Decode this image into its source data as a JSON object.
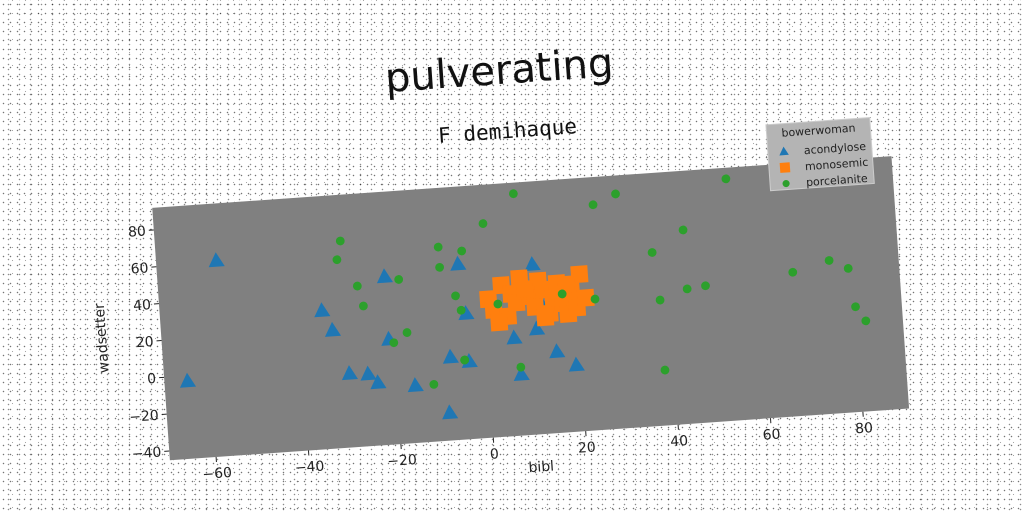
{
  "chart_data": {
    "type": "scatter",
    "title": "pulverating",
    "subtitle": "F demihaque",
    "xlabel": "bibl",
    "ylabel": "wadsetter",
    "xlim": [
      -70,
      90
    ],
    "ylim": [
      -45,
      92
    ],
    "xticks": [
      -60,
      -40,
      -20,
      0,
      20,
      40,
      60,
      80
    ],
    "yticks": [
      -40,
      -20,
      0,
      20,
      40,
      60,
      80
    ],
    "grid": false,
    "plot_background": "#808080",
    "legend": {
      "title": "bowerwoman",
      "position": "top-right"
    },
    "series": [
      {
        "name": "acondylose",
        "marker": "triangle",
        "color": "#1f77b4",
        "x": [
          -57,
          -65,
          -35,
          -33,
          -30,
          -26,
          -24,
          -21,
          -21,
          -16,
          -9,
          -8,
          -5,
          -4,
          -4,
          6,
          7,
          11,
          11,
          12,
          15,
          19
        ],
        "y": [
          61,
          -3,
          30,
          19,
          -5,
          -6,
          -11,
          46,
          12,
          -14,
          -30,
          0,
          50,
          23,
          -3,
          8,
          -12,
          47,
          12,
          27,
          -1,
          -9
        ]
      },
      {
        "name": "monosemic",
        "marker": "square",
        "color": "#ff7f0e",
        "x": [
          1,
          2,
          4,
          5,
          6,
          7,
          8,
          10,
          11,
          12,
          13,
          14,
          15,
          16,
          17,
          18,
          19,
          20,
          21,
          22,
          3,
          9,
          13,
          18
        ],
        "y": [
          30,
          24,
          37,
          20,
          32,
          27,
          40,
          30,
          24,
          38,
          33,
          20,
          28,
          36,
          25,
          19,
          31,
          22,
          40,
          27,
          17,
          34,
          18,
          35
        ]
      },
      {
        "name": "porcelanite",
        "marker": "circle",
        "color": "#2ca02c",
        "x": [
          -30,
          -31,
          -27,
          -26,
          -18,
          -17,
          -20,
          -12,
          -9,
          -9,
          -6,
          -5,
          -4,
          -5,
          1,
          -5,
          3,
          7,
          8,
          17,
          25,
          24,
          30,
          37,
          38,
          38,
          44,
          44,
          48,
          54,
          67,
          75,
          79,
          80,
          82
        ],
        "y": [
          67,
          57,
          42,
          31,
          44,
          15,
          10,
          -14,
          60,
          49,
          33,
          25,
          57,
          -2,
          71,
          -2,
          27,
          -8,
          86,
          30,
          77,
          26,
          82,
          49,
          23,
          -15,
          60,
          28,
          29,
          86,
          33,
          38,
          33,
          12,
          4
        ]
      }
    ]
  }
}
